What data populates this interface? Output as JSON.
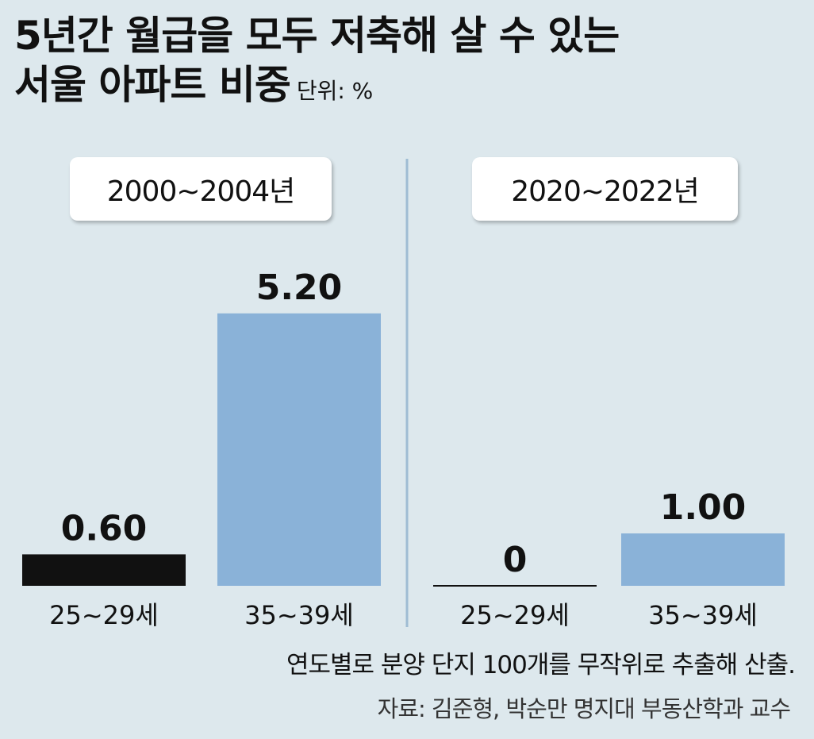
{
  "title_line1": "5년간 월급을 모두 저축해 살 수 있는",
  "title_line2": "서울 아파트 비중",
  "unit": "단위: %",
  "note": "연도별로 분양 단지 100개를 무작위로 추출해 산출.",
  "source": "자료: 김준형, 박순만 명지대 부동산학과 교수",
  "colors": {
    "background": "#dde8ed",
    "bar_25_29": "#111111",
    "bar_35_39": "#8ab2d8",
    "divider": "#9fbcd3"
  },
  "chart_data": [
    {
      "type": "bar",
      "period": "2000~2004년",
      "categories": [
        "25~29세",
        "35~39세"
      ],
      "values": [
        0.6,
        5.2
      ],
      "value_labels": [
        "0.60",
        "5.20"
      ]
    },
    {
      "type": "bar",
      "period": "2020~2022년",
      "categories": [
        "25~29세",
        "35~39세"
      ],
      "values": [
        0,
        1.0
      ],
      "value_labels": [
        "0",
        "1.00"
      ]
    }
  ]
}
